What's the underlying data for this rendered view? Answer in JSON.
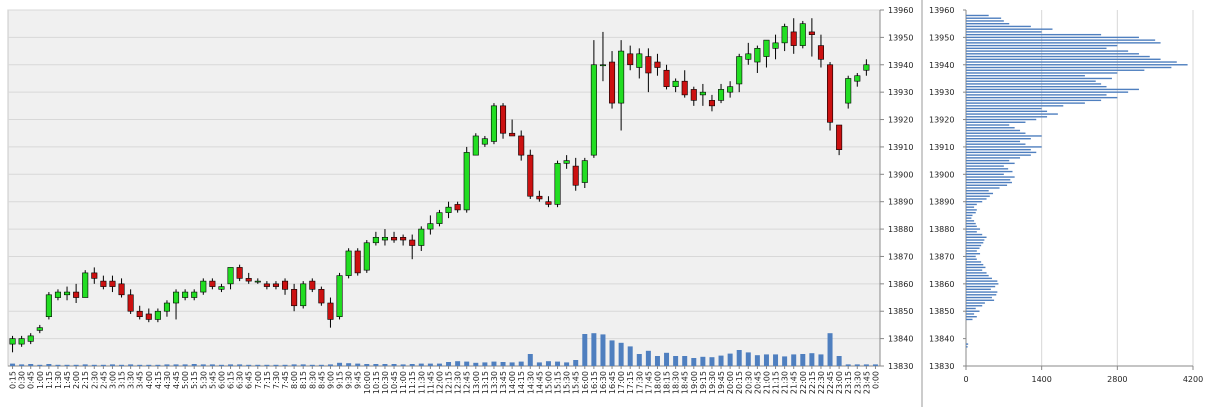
{
  "chart_data": [
    {
      "type": "candlestick",
      "price_ticks": [
        "13830",
        "13840",
        "13850",
        "13860",
        "13870",
        "13880",
        "13890",
        "13900",
        "13910",
        "13920",
        "13930",
        "13940",
        "13950",
        "13960"
      ],
      "ylim": [
        13830,
        13960
      ],
      "time_labels": [
        "0:15",
        "0:30",
        "0:45",
        "1:00",
        "1:15",
        "1:30",
        "1:45",
        "2:00",
        "2:15",
        "2:30",
        "2:45",
        "3:00",
        "3:15",
        "3:30",
        "3:45",
        "4:00",
        "4:15",
        "4:30",
        "4:45",
        "5:00",
        "5:15",
        "5:30",
        "5:45",
        "6:00",
        "6:15",
        "6:30",
        "6:45",
        "7:00",
        "7:15",
        "7:30",
        "7:45",
        "8:00",
        "8:15",
        "8:30",
        "8:45",
        "9:00",
        "9:15",
        "9:30",
        "9:45",
        "10:00",
        "10:15",
        "10:30",
        "10:45",
        "11:00",
        "11:15",
        "11:30",
        "11:45",
        "12:00",
        "12:15",
        "12:30",
        "12:45",
        "13:00",
        "13:15",
        "13:30",
        "13:45",
        "14:00",
        "14:15",
        "14:30",
        "14:45",
        "15:00",
        "15:15",
        "15:30",
        "15:45",
        "16:00",
        "16:15",
        "16:30",
        "16:45",
        "17:00",
        "17:15",
        "17:30",
        "17:45",
        "18:00",
        "18:15",
        "18:30",
        "18:45",
        "19:00",
        "19:15",
        "19:30",
        "19:45",
        "20:00",
        "20:15",
        "20:30",
        "20:45",
        "21:00",
        "21:15",
        "21:30",
        "21:45",
        "22:00",
        "22:15",
        "22:30",
        "22:45",
        "23:00",
        "23:15",
        "23:30",
        "23:45",
        "0:00"
      ],
      "candles": [
        {
          "o": 13838,
          "h": 13841,
          "l": 13835,
          "c": 13840
        },
        {
          "o": 13838,
          "h": 13841,
          "l": 13837,
          "c": 13840
        },
        {
          "o": 13839,
          "h": 13842,
          "l": 13838,
          "c": 13841
        },
        {
          "o": 13843,
          "h": 13845,
          "l": 13842,
          "c": 13844
        },
        {
          "o": 13848,
          "h": 13857,
          "l": 13847,
          "c": 13856
        },
        {
          "o": 13855,
          "h": 13858,
          "l": 13854,
          "c": 13857
        },
        {
          "o": 13856,
          "h": 13859,
          "l": 13854,
          "c": 13857
        },
        {
          "o": 13857,
          "h": 13860,
          "l": 13853,
          "c": 13855
        },
        {
          "o": 13855,
          "h": 13865,
          "l": 13855,
          "c": 13864
        },
        {
          "o": 13864,
          "h": 13866,
          "l": 13860,
          "c": 13862
        },
        {
          "o": 13861,
          "h": 13863,
          "l": 13858,
          "c": 13859
        },
        {
          "o": 13861,
          "h": 13863,
          "l": 13857,
          "c": 13859
        },
        {
          "o": 13860,
          "h": 13862,
          "l": 13855,
          "c": 13856
        },
        {
          "o": 13856,
          "h": 13858,
          "l": 13849,
          "c": 13850
        },
        {
          "o": 13850,
          "h": 13852,
          "l": 13847,
          "c": 13848
        },
        {
          "o": 13849,
          "h": 13851,
          "l": 13846,
          "c": 13847
        },
        {
          "o": 13847,
          "h": 13851,
          "l": 13846,
          "c": 13850
        },
        {
          "o": 13850,
          "h": 13854,
          "l": 13848,
          "c": 13853
        },
        {
          "o": 13853,
          "h": 13858,
          "l": 13847,
          "c": 13857
        },
        {
          "o": 13855,
          "h": 13858,
          "l": 13854,
          "c": 13857
        },
        {
          "o": 13855,
          "h": 13858,
          "l": 13854,
          "c": 13857
        },
        {
          "o": 13857,
          "h": 13862,
          "l": 13856,
          "c": 13861
        },
        {
          "o": 13861,
          "h": 13862,
          "l": 13858,
          "c": 13859
        },
        {
          "o": 13858,
          "h": 13860,
          "l": 13857,
          "c": 13859
        },
        {
          "o": 13860,
          "h": 13866,
          "l": 13858,
          "c": 13866
        },
        {
          "o": 13866,
          "h": 13867,
          "l": 13861,
          "c": 13862
        },
        {
          "o": 13862,
          "h": 13864,
          "l": 13860,
          "c": 13861
        },
        {
          "o": 13861,
          "h": 13862,
          "l": 13860,
          "c": 13861
        },
        {
          "o": 13860,
          "h": 13861,
          "l": 13858,
          "c": 13859
        },
        {
          "o": 13860,
          "h": 13861,
          "l": 13858,
          "c": 13859
        },
        {
          "o": 13861,
          "h": 13862,
          "l": 13856,
          "c": 13858
        },
        {
          "o": 13858,
          "h": 13860,
          "l": 13850,
          "c": 13852
        },
        {
          "o": 13852,
          "h": 13861,
          "l": 13851,
          "c": 13860
        },
        {
          "o": 13861,
          "h": 13862,
          "l": 13857,
          "c": 13858
        },
        {
          "o": 13858,
          "h": 13859,
          "l": 13852,
          "c": 13853
        },
        {
          "o": 13853,
          "h": 13855,
          "l": 13844,
          "c": 13847
        },
        {
          "o": 13848,
          "h": 13864,
          "l": 13847,
          "c": 13863
        },
        {
          "o": 13863,
          "h": 13873,
          "l": 13862,
          "c": 13872
        },
        {
          "o": 13872,
          "h": 13873,
          "l": 13863,
          "c": 13864
        },
        {
          "o": 13865,
          "h": 13876,
          "l": 13864,
          "c": 13875
        },
        {
          "o": 13875,
          "h": 13879,
          "l": 13874,
          "c": 13877
        },
        {
          "o": 13876,
          "h": 13880,
          "l": 13874,
          "c": 13877
        },
        {
          "o": 13877,
          "h": 13879,
          "l": 13875,
          "c": 13876
        },
        {
          "o": 13877,
          "h": 13878,
          "l": 13874,
          "c": 13876
        },
        {
          "o": 13876,
          "h": 13878,
          "l": 13869,
          "c": 13874
        },
        {
          "o": 13874,
          "h": 13881,
          "l": 13872,
          "c": 13880
        },
        {
          "o": 13880,
          "h": 13885,
          "l": 13878,
          "c": 13882
        },
        {
          "o": 13882,
          "h": 13887,
          "l": 13881,
          "c": 13886
        },
        {
          "o": 13886,
          "h": 13890,
          "l": 13884,
          "c": 13888
        },
        {
          "o": 13889,
          "h": 13890,
          "l": 13886,
          "c": 13887
        },
        {
          "o": 13887,
          "h": 13910,
          "l": 13886,
          "c": 13908
        },
        {
          "o": 13907,
          "h": 13915,
          "l": 13907,
          "c": 13914
        },
        {
          "o": 13911,
          "h": 13914,
          "l": 13910,
          "c": 13913
        },
        {
          "o": 13912,
          "h": 13926,
          "l": 13911,
          "c": 13925
        },
        {
          "o": 13925,
          "h": 13926,
          "l": 13913,
          "c": 13915
        },
        {
          "o": 13915,
          "h": 13920,
          "l": 13914,
          "c": 13914
        },
        {
          "o": 13914,
          "h": 13916,
          "l": 13905,
          "c": 13907
        },
        {
          "o": 13907,
          "h": 13909,
          "l": 13891,
          "c": 13892
        },
        {
          "o": 13892,
          "h": 13894,
          "l": 13890,
          "c": 13891
        },
        {
          "o": 13890,
          "h": 13892,
          "l": 13888,
          "c": 13889
        },
        {
          "o": 13889,
          "h": 13905,
          "l": 13888,
          "c": 13904
        },
        {
          "o": 13904,
          "h": 13907,
          "l": 13902,
          "c": 13905
        },
        {
          "o": 13903,
          "h": 13906,
          "l": 13894,
          "c": 13896
        },
        {
          "o": 13897,
          "h": 13906,
          "l": 13895,
          "c": 13905
        },
        {
          "o": 13907,
          "h": 13949,
          "l": 13906,
          "c": 13940
        },
        {
          "o": 13940,
          "h": 13952,
          "l": 13934,
          "c": 13940
        },
        {
          "o": 13941,
          "h": 13945,
          "l": 13924,
          "c": 13926
        },
        {
          "o": 13926,
          "h": 13949,
          "l": 13916,
          "c": 13945
        },
        {
          "o": 13944,
          "h": 13947,
          "l": 13938,
          "c": 13940
        },
        {
          "o": 13939,
          "h": 13946,
          "l": 13935,
          "c": 13944
        },
        {
          "o": 13943,
          "h": 13946,
          "l": 13930,
          "c": 13937
        },
        {
          "o": 13941,
          "h": 13944,
          "l": 13936,
          "c": 13939
        },
        {
          "o": 13938,
          "h": 13940,
          "l": 13931,
          "c": 13932
        },
        {
          "o": 13932,
          "h": 13935,
          "l": 13930,
          "c": 13934
        },
        {
          "o": 13934,
          "h": 13938,
          "l": 13928,
          "c": 13929
        },
        {
          "o": 13931,
          "h": 13932,
          "l": 13925,
          "c": 13927
        },
        {
          "o": 13929,
          "h": 13933,
          "l": 13925,
          "c": 13930
        },
        {
          "o": 13927,
          "h": 13929,
          "l": 13923,
          "c": 13925
        },
        {
          "o": 13927,
          "h": 13933,
          "l": 13926,
          "c": 13931
        },
        {
          "o": 13930,
          "h": 13934,
          "l": 13928,
          "c": 13932
        },
        {
          "o": 13933,
          "h": 13944,
          "l": 13930,
          "c": 13943
        },
        {
          "o": 13942,
          "h": 13948,
          "l": 13940,
          "c": 13944
        },
        {
          "o": 13941,
          "h": 13947,
          "l": 13937,
          "c": 13946
        },
        {
          "o": 13943,
          "h": 13949,
          "l": 13939,
          "c": 13949
        },
        {
          "o": 13946,
          "h": 13951,
          "l": 13942,
          "c": 13948
        },
        {
          "o": 13948,
          "h": 13955,
          "l": 13945,
          "c": 13954
        },
        {
          "o": 13952,
          "h": 13957,
          "l": 13944,
          "c": 13947
        },
        {
          "o": 13947,
          "h": 13956,
          "l": 13946,
          "c": 13955
        },
        {
          "o": 13952,
          "h": 13957,
          "l": 13943,
          "c": 13951
        },
        {
          "o": 13947,
          "h": 13951,
          "l": 13939,
          "c": 13942
        },
        {
          "o": 13940,
          "h": 13941,
          "l": 13916,
          "c": 13919
        },
        {
          "o": 13918,
          "h": 13918,
          "l": 13907,
          "c": 13909
        },
        {
          "o": 13926,
          "h": 13936,
          "l": 13924,
          "c": 13935
        },
        {
          "o": 13934,
          "h": 13937,
          "l": 13932,
          "c": 13936
        },
        {
          "o": 13938,
          "h": 13942,
          "l": 13936,
          "c": 13940
        }
      ],
      "candle_slots": [
        0,
        1,
        2,
        3,
        4,
        5,
        6,
        7,
        8,
        9,
        10,
        11,
        12,
        13,
        14,
        15,
        16,
        17,
        18,
        19,
        20,
        21,
        22,
        23,
        24,
        25,
        26,
        27,
        28,
        29,
        30,
        31,
        32,
        33,
        34,
        35,
        36,
        37,
        38,
        39,
        40,
        41,
        42,
        43,
        44,
        45,
        46,
        47,
        48,
        49,
        50,
        51,
        52,
        53,
        54,
        55,
        56,
        57,
        58,
        59,
        60,
        61,
        62,
        63,
        64,
        65,
        66,
        67,
        68,
        69,
        70,
        71,
        72,
        73,
        74,
        75,
        76,
        77,
        78,
        79,
        80,
        81,
        82,
        83,
        84,
        85,
        86,
        87,
        88,
        89,
        90,
        91,
        92,
        93,
        94,
        95
      ],
      "volume": [
        60,
        40,
        50,
        30,
        50,
        30,
        30,
        30,
        40,
        30,
        30,
        40,
        30,
        40,
        30,
        30,
        30,
        40,
        40,
        40,
        50,
        40,
        40,
        30,
        40,
        40,
        30,
        30,
        30,
        30,
        30,
        40,
        40,
        30,
        30,
        40,
        80,
        70,
        60,
        50,
        50,
        50,
        50,
        40,
        50,
        60,
        60,
        60,
        100,
        120,
        110,
        80,
        90,
        110,
        100,
        90,
        110,
        300,
        90,
        120,
        110,
        90,
        150,
        800,
        820,
        790,
        640,
        580,
        490,
        300,
        380,
        250,
        330,
        250,
        250,
        200,
        230,
        220,
        260,
        310,
        400,
        340,
        270,
        290,
        290,
        240,
        290,
        300,
        320,
        290,
        820,
        250,
        40,
        40,
        40,
        40
      ],
      "colors": {
        "up": "#22dd22",
        "down": "#cc1111",
        "volume": "#4f7fbf",
        "profile": "#4f7fbf",
        "plot_bg": "#f0f0f0",
        "grid": "#d8d8d8"
      }
    },
    {
      "type": "bar",
      "orientation": "horizontal",
      "price_ticks": [
        "13830",
        "13840",
        "13850",
        "13860",
        "13870",
        "13880",
        "13890",
        "13900",
        "13910",
        "13920",
        "13930",
        "13940",
        "13950",
        "13960"
      ],
      "x_ticks": [
        "0",
        "1400",
        "2800",
        "4200"
      ],
      "xlim": [
        0,
        4200
      ],
      "ylim": [
        13830,
        13960
      ],
      "profile_levels": [
        13838,
        13837,
        13847,
        13848,
        13849,
        13850,
        13851,
        13852,
        13853,
        13854,
        13855,
        13856,
        13857,
        13858,
        13859,
        13860,
        13861,
        13862,
        13863,
        13864,
        13865,
        13866,
        13867,
        13868,
        13869,
        13870,
        13871,
        13872,
        13873,
        13874,
        13875,
        13876,
        13877,
        13878,
        13879,
        13880,
        13881,
        13882,
        13883,
        13884,
        13885,
        13886,
        13887,
        13888,
        13889,
        13890,
        13891,
        13892,
        13893,
        13894,
        13895,
        13896,
        13897,
        13898,
        13899,
        13900,
        13901,
        13902,
        13903,
        13904,
        13905,
        13906,
        13907,
        13908,
        13909,
        13910,
        13911,
        13912,
        13913,
        13914,
        13915,
        13916,
        13917,
        13918,
        13919,
        13920,
        13921,
        13922,
        13923,
        13924,
        13925,
        13926,
        13927,
        13928,
        13929,
        13930,
        13931,
        13932,
        13933,
        13934,
        13935,
        13936,
        13937,
        13938,
        13939,
        13940,
        13941,
        13942,
        13943,
        13944,
        13945,
        13946,
        13947,
        13948,
        13949,
        13950,
        13951,
        13952,
        13953,
        13954,
        13955,
        13956,
        13957,
        13958
      ],
      "profile_values": [
        40,
        30,
        120,
        200,
        150,
        250,
        180,
        300,
        350,
        520,
        480,
        560,
        580,
        460,
        540,
        600,
        580,
        480,
        420,
        380,
        300,
        360,
        320,
        280,
        200,
        180,
        260,
        200,
        250,
        280,
        320,
        340,
        380,
        300,
        200,
        260,
        200,
        180,
        150,
        100,
        120,
        180,
        200,
        150,
        200,
        300,
        380,
        440,
        500,
        420,
        620,
        760,
        850,
        820,
        900,
        700,
        860,
        780,
        700,
        900,
        800,
        1000,
        1200,
        1300,
        1200,
        1400,
        1100,
        1000,
        1200,
        1400,
        1100,
        1000,
        900,
        800,
        1100,
        1300,
        1500,
        1700,
        1500,
        1400,
        1800,
        2200,
        2500,
        2800,
        2600,
        3000,
        3200,
        2600,
        2500,
        2400,
        2700,
        2200,
        2800,
        3300,
        3800,
        4100,
        3900,
        3600,
        3400,
        3200,
        3000,
        2600,
        2800,
        3600,
        3500,
        3200,
        2500,
        1400,
        1600,
        1200,
        800,
        700,
        650,
        420
      ]
    }
  ]
}
